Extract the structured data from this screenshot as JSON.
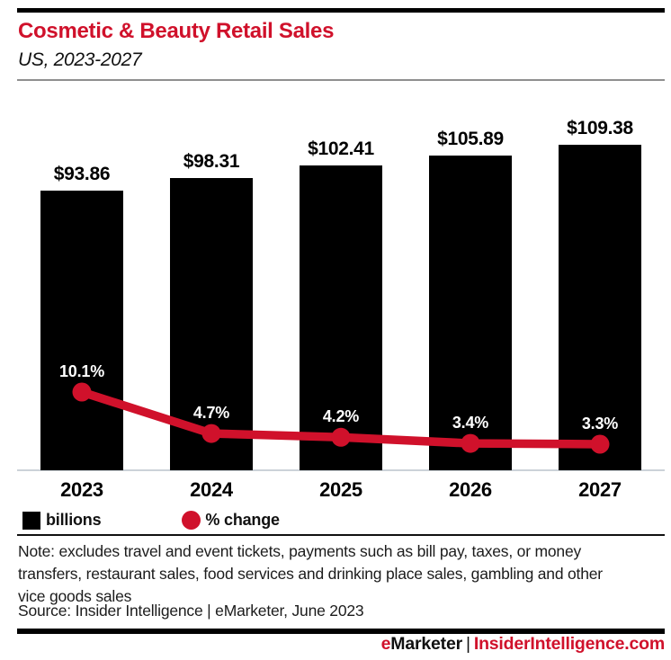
{
  "header": {
    "title": "Cosmetic & Beauty Retail Sales",
    "subtitle": "US, 2023-2027",
    "title_color": "#d0112b"
  },
  "chart_data": {
    "type": "bar",
    "subtype": "bar-line-combo",
    "categories": [
      "2023",
      "2024",
      "2025",
      "2026",
      "2027"
    ],
    "series": [
      {
        "name": "billions",
        "type": "bar",
        "color": "#000000",
        "values": [
          93.86,
          98.31,
          102.41,
          105.89,
          109.38
        ],
        "labels": [
          "$93.86",
          "$98.31",
          "$102.41",
          "$105.89",
          "$109.38"
        ]
      },
      {
        "name": "% change",
        "type": "line",
        "color": "#d0112b",
        "values": [
          10.1,
          4.7,
          4.2,
          3.4,
          3.3
        ],
        "labels": [
          "10.1%",
          "4.7%",
          "4.2%",
          "3.4%",
          "3.3%"
        ]
      }
    ],
    "title": "Cosmetic & Beauty Retail Sales",
    "subtitle": "US, 2023-2027",
    "xlabel": "",
    "ylabel": "",
    "ylim_bar": [
      0,
      109.38
    ],
    "grid": false,
    "legend_position": "bottom-left"
  },
  "legend": {
    "items": [
      {
        "label": "billions",
        "swatch": "square",
        "color": "#000000"
      },
      {
        "label": "% change",
        "swatch": "circle",
        "color": "#d0112b"
      }
    ]
  },
  "notes": {
    "note_lines": [
      "Note: excludes travel and event tickets, payments such as bill pay, taxes, or money",
      "transfers, restaurant sales, food services and drinking place sales, gambling and other",
      "vice goods sales"
    ],
    "source": "Source: Insider Intelligence | eMarketer, June 2023"
  },
  "footer": {
    "brand_e": "e",
    "brand_rest": "Marketer",
    "separator": "|",
    "site": "InsiderIntelligence.com"
  }
}
